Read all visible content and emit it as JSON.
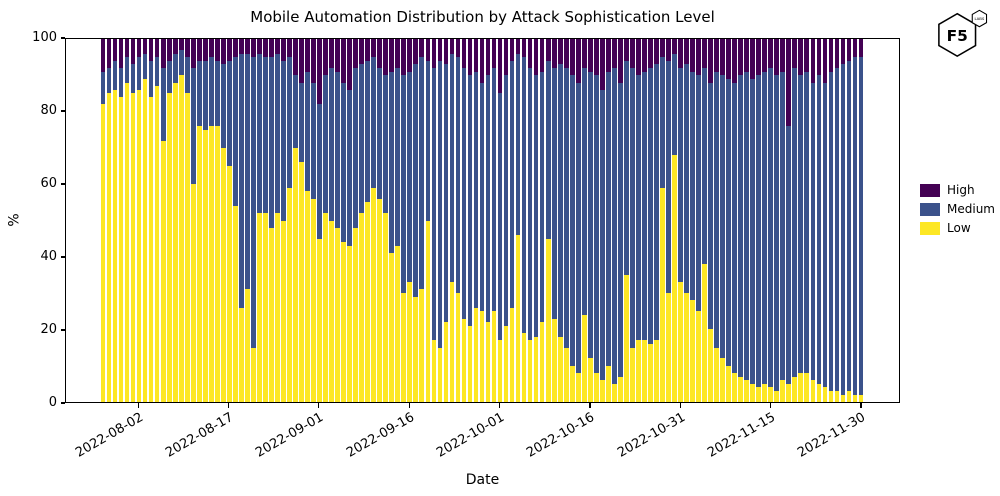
{
  "branding": {
    "logo_text": "F5",
    "logo_sub": "LABS"
  },
  "chart_data": {
    "type": "bar",
    "stacked": true,
    "percent_stacked": true,
    "title": "Mobile Automation Distribution by Attack Sophistication Level",
    "xlabel": "Date",
    "ylabel": "%",
    "ylim": [
      0,
      100
    ],
    "yticks": [
      0,
      20,
      40,
      60,
      80,
      100
    ],
    "grid": false,
    "xtick_labels": [
      "2022-08-02",
      "2022-08-17",
      "2022-09-01",
      "2022-09-16",
      "2022-10-01",
      "2022-10-16",
      "2022-10-31",
      "2022-11-15",
      "2022-11-30"
    ],
    "legend": {
      "position": "right",
      "entries": [
        {
          "label": "High",
          "color": "#440154"
        },
        {
          "label": "Medium",
          "color": "#3b528b"
        },
        {
          "label": "Low",
          "color": "#fde725"
        }
      ]
    },
    "x": [
      "2022-07-27",
      "2022-07-28",
      "2022-07-29",
      "2022-07-30",
      "2022-07-31",
      "2022-08-01",
      "2022-08-02",
      "2022-08-03",
      "2022-08-04",
      "2022-08-05",
      "2022-08-06",
      "2022-08-07",
      "2022-08-08",
      "2022-08-09",
      "2022-08-10",
      "2022-08-11",
      "2022-08-12",
      "2022-08-13",
      "2022-08-14",
      "2022-08-15",
      "2022-08-16",
      "2022-08-17",
      "2022-08-18",
      "2022-08-19",
      "2022-08-20",
      "2022-08-21",
      "2022-08-22",
      "2022-08-23",
      "2022-08-24",
      "2022-08-25",
      "2022-08-26",
      "2022-08-27",
      "2022-08-28",
      "2022-08-29",
      "2022-08-30",
      "2022-08-31",
      "2022-09-01",
      "2022-09-02",
      "2022-09-03",
      "2022-09-04",
      "2022-09-05",
      "2022-09-06",
      "2022-09-07",
      "2022-09-08",
      "2022-09-09",
      "2022-09-10",
      "2022-09-11",
      "2022-09-12",
      "2022-09-13",
      "2022-09-14",
      "2022-09-15",
      "2022-09-16",
      "2022-09-17",
      "2022-09-18",
      "2022-09-19",
      "2022-09-20",
      "2022-09-21",
      "2022-09-22",
      "2022-09-23",
      "2022-09-24",
      "2022-09-25",
      "2022-09-26",
      "2022-09-27",
      "2022-09-28",
      "2022-09-29",
      "2022-09-30",
      "2022-10-01",
      "2022-10-02",
      "2022-10-03",
      "2022-10-04",
      "2022-10-05",
      "2022-10-06",
      "2022-10-07",
      "2022-10-08",
      "2022-10-09",
      "2022-10-10",
      "2022-10-11",
      "2022-10-12",
      "2022-10-13",
      "2022-10-14",
      "2022-10-15",
      "2022-10-16",
      "2022-10-17",
      "2022-10-18",
      "2022-10-19",
      "2022-10-20",
      "2022-10-21",
      "2022-10-22",
      "2022-10-23",
      "2022-10-24",
      "2022-10-25",
      "2022-10-26",
      "2022-10-27",
      "2022-10-28",
      "2022-10-29",
      "2022-10-30",
      "2022-10-31",
      "2022-11-01",
      "2022-11-02",
      "2022-11-03",
      "2022-11-04",
      "2022-11-05",
      "2022-11-06",
      "2022-11-07",
      "2022-11-08",
      "2022-11-09",
      "2022-11-10",
      "2022-11-11",
      "2022-11-12",
      "2022-11-13",
      "2022-11-14",
      "2022-11-15",
      "2022-11-16",
      "2022-11-17",
      "2022-11-18",
      "2022-11-19",
      "2022-11-20",
      "2022-11-21",
      "2022-11-22",
      "2022-11-23",
      "2022-11-24",
      "2022-11-25",
      "2022-11-26",
      "2022-11-27",
      "2022-11-28",
      "2022-11-29",
      "2022-11-30"
    ],
    "series": [
      {
        "name": "Low",
        "color": "#fde725",
        "values": [
          82,
          85,
          86,
          84,
          88,
          85,
          86,
          89,
          84,
          87,
          72,
          85,
          88,
          90,
          85,
          60,
          76,
          75,
          76,
          76,
          70,
          65,
          54,
          26,
          31,
          15,
          52,
          52,
          48,
          52,
          50,
          59,
          70,
          66,
          58,
          56,
          45,
          52,
          50,
          48,
          44,
          43,
          48,
          52,
          55,
          59,
          56,
          52,
          41,
          43,
          30,
          33,
          29,
          31,
          50,
          17,
          15,
          22,
          33,
          30,
          23,
          21,
          26,
          25,
          22,
          25,
          17,
          21,
          26,
          46,
          19,
          17,
          18,
          22,
          45,
          23,
          18,
          15,
          10,
          8,
          24,
          12,
          8,
          6,
          10,
          5,
          7,
          35,
          15,
          17,
          17,
          16,
          17,
          59,
          30,
          68,
          33,
          30,
          28,
          25,
          38,
          20,
          15,
          12,
          10,
          8,
          7,
          6,
          5,
          4,
          5,
          4,
          3,
          6,
          5,
          7,
          8,
          8,
          6,
          5,
          4,
          3,
          3,
          2,
          3,
          2,
          2
        ]
      },
      {
        "name": "Medium",
        "color": "#3b528b",
        "values": [
          9,
          7,
          8,
          8,
          7,
          8,
          9,
          7,
          10,
          8,
          20,
          9,
          8,
          7,
          10,
          32,
          18,
          19,
          19,
          18,
          23,
          29,
          41,
          70,
          65,
          80,
          44,
          43,
          47,
          44,
          44,
          36,
          20,
          22,
          33,
          32,
          37,
          38,
          42,
          43,
          44,
          43,
          44,
          41,
          39,
          36,
          36,
          38,
          50,
          49,
          60,
          58,
          64,
          64,
          44,
          75,
          79,
          71,
          63,
          65,
          69,
          69,
          65,
          63,
          68,
          67,
          68,
          69,
          68,
          50,
          76,
          75,
          72,
          69,
          49,
          69,
          75,
          77,
          80,
          80,
          68,
          79,
          82,
          80,
          81,
          87,
          81,
          59,
          77,
          73,
          74,
          76,
          76,
          36,
          64,
          28,
          59,
          63,
          63,
          65,
          54,
          68,
          76,
          78,
          79,
          80,
          83,
          85,
          84,
          86,
          86,
          88,
          87,
          85,
          71,
          85,
          82,
          83,
          82,
          85,
          84,
          88,
          89,
          91,
          91,
          93,
          93
        ]
      },
      {
        "name": "High",
        "color": "#440154",
        "values": [
          9,
          8,
          6,
          8,
          5,
          7,
          5,
          4,
          6,
          5,
          8,
          6,
          4,
          3,
          5,
          8,
          6,
          6,
          5,
          6,
          7,
          6,
          5,
          4,
          4,
          5,
          4,
          5,
          5,
          4,
          6,
          5,
          10,
          12,
          9,
          12,
          18,
          10,
          8,
          9,
          12,
          14,
          8,
          7,
          6,
          5,
          8,
          10,
          9,
          8,
          10,
          9,
          7,
          5,
          6,
          8,
          6,
          7,
          4,
          5,
          8,
          10,
          9,
          12,
          10,
          8,
          15,
          10,
          6,
          4,
          5,
          8,
          10,
          9,
          6,
          8,
          7,
          8,
          10,
          12,
          8,
          9,
          10,
          14,
          9,
          8,
          12,
          6,
          8,
          10,
          9,
          8,
          7,
          5,
          6,
          4,
          8,
          7,
          9,
          10,
          8,
          12,
          9,
          10,
          11,
          12,
          10,
          9,
          11,
          10,
          9,
          8,
          10,
          9,
          24,
          8,
          10,
          9,
          12,
          10,
          12,
          9,
          8,
          7,
          6,
          5,
          5
        ]
      }
    ]
  }
}
